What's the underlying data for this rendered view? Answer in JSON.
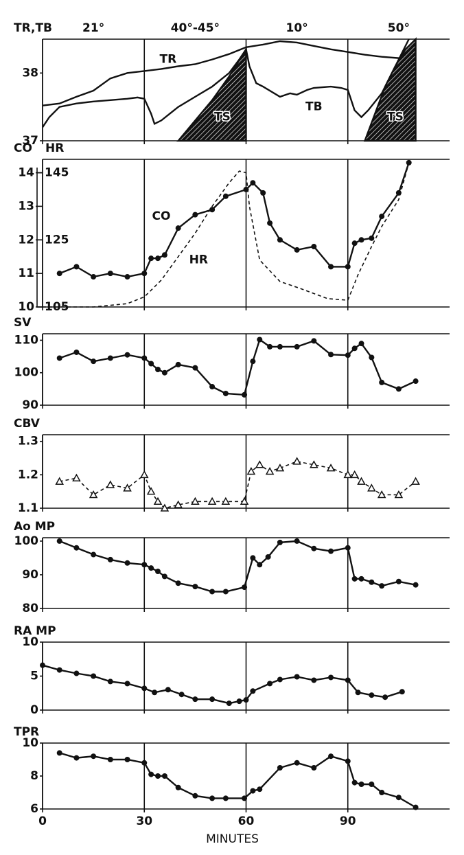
{
  "chart_data": [
    {
      "type": "line",
      "title": "TR,TB",
      "xlim": [
        0,
        120
      ],
      "xticks": [
        0,
        30,
        60,
        90
      ],
      "ylim": [
        37,
        38.5
      ],
      "yticks": [
        37,
        38
      ],
      "phases": [
        {
          "label": "21°",
          "start": 0,
          "end": 30
        },
        {
          "label": "40°-45°",
          "start": 30,
          "end": 60
        },
        {
          "label": "10°",
          "start": 60,
          "end": 90
        },
        {
          "label": "50°",
          "start": 90,
          "end": 120
        }
      ],
      "series": [
        {
          "name": "TR",
          "color": "#111",
          "x": [
            0,
            5,
            10,
            15,
            20,
            25,
            30,
            35,
            40,
            45,
            50,
            55,
            58,
            60,
            65,
            70,
            75,
            80,
            85,
            90,
            95,
            100,
            105,
            110
          ],
          "values": [
            37.52,
            37.55,
            37.65,
            37.74,
            37.92,
            38.0,
            38.03,
            38.06,
            38.1,
            38.13,
            38.2,
            38.28,
            38.34,
            38.38,
            38.42,
            38.47,
            38.45,
            38.4,
            38.35,
            38.31,
            38.27,
            38.24,
            38.22,
            38.3
          ]
        },
        {
          "name": "TB",
          "color": "#111",
          "x": [
            0,
            2,
            5,
            10,
            15,
            20,
            25,
            28,
            30,
            32,
            33,
            35,
            40,
            45,
            50,
            55,
            58,
            60,
            61,
            63,
            65,
            70,
            73,
            75,
            78,
            80,
            85,
            88,
            90,
            92,
            94,
            96,
            100,
            104,
            108
          ],
          "values": [
            37.2,
            37.35,
            37.5,
            37.55,
            37.58,
            37.6,
            37.62,
            37.64,
            37.62,
            37.4,
            37.25,
            37.3,
            37.5,
            37.65,
            37.8,
            38.0,
            38.2,
            38.35,
            38.1,
            37.85,
            37.8,
            37.65,
            37.7,
            37.68,
            37.75,
            37.78,
            37.8,
            37.78,
            37.75,
            37.45,
            37.35,
            37.45,
            37.7,
            38.1,
            38.5
          ]
        },
        {
          "name": "TS",
          "color": "#111",
          "area": true,
          "x": [
            40,
            45,
            50,
            55,
            60,
            75,
            95,
            98,
            101,
            104,
            107,
            110
          ],
          "values": [
            37,
            37.3,
            37.6,
            37.95,
            38.35,
            null,
            37,
            37.4,
            37.8,
            38.1,
            38.35,
            38.5
          ]
        }
      ],
      "annotations": [
        {
          "text": "TR",
          "x": 37,
          "y": 38.2
        },
        {
          "text": "TB",
          "x": 80,
          "y": 37.5
        },
        {
          "text": "TS",
          "x": 53,
          "y": 37.35
        },
        {
          "text": "TS",
          "x": 104,
          "y": 37.35
        }
      ]
    },
    {
      "type": "line",
      "title": "CO",
      "y2label": "HR",
      "xlim": [
        0,
        120
      ],
      "xticks": [
        0,
        30,
        60,
        90
      ],
      "ylim": [
        10,
        14.4
      ],
      "yticks": [
        10,
        11,
        12,
        13,
        14
      ],
      "y2lim": [
        105,
        149
      ],
      "y2ticks": [
        105,
        125,
        145
      ],
      "series": [
        {
          "name": "CO",
          "color": "#111",
          "marker": "circle",
          "x": [
            5,
            10,
            15,
            20,
            25,
            30,
            32,
            34,
            36,
            40,
            45,
            50,
            54,
            60,
            62,
            65,
            67,
            70,
            75,
            80,
            85,
            90,
            92,
            94,
            97,
            100,
            105,
            108
          ],
          "values": [
            11.0,
            11.2,
            10.9,
            11.0,
            10.9,
            11.0,
            11.45,
            11.45,
            11.55,
            12.35,
            12.75,
            12.9,
            13.3,
            13.5,
            13.7,
            13.4,
            12.5,
            12.0,
            11.7,
            11.8,
            11.2,
            11.2,
            11.9,
            12.0,
            12.05,
            12.7,
            13.4,
            14.3
          ]
        },
        {
          "name": "HR",
          "color": "#111",
          "dash": true,
          "axis": "y2",
          "x": [
            0,
            5,
            10,
            15,
            20,
            25,
            30,
            35,
            40,
            45,
            50,
            55,
            58,
            60,
            61,
            64,
            70,
            76,
            84,
            90,
            93,
            97,
            100,
            105,
            108
          ],
          "values": [
            105,
            105,
            105,
            105,
            105.5,
            106,
            108,
            113,
            120,
            127,
            135,
            142,
            145.5,
            145,
            135,
            119,
            112.6,
            110.5,
            107.5,
            107,
            114.6,
            123,
            129,
            137,
            148
          ]
        }
      ],
      "annotations": [
        {
          "text": "CO",
          "x": 35,
          "y": 12.7
        },
        {
          "text": "HR",
          "x": 46,
          "y": 11.4
        }
      ]
    },
    {
      "type": "line",
      "title": "SV",
      "xlim": [
        0,
        120
      ],
      "xticks": [
        0,
        30,
        60,
        90
      ],
      "ylim": [
        90,
        112
      ],
      "yticks": [
        90,
        100,
        110
      ],
      "series": [
        {
          "name": "SV",
          "color": "#111",
          "marker": "circle",
          "x": [
            5,
            10,
            15,
            20,
            25,
            30,
            32,
            34,
            36,
            40,
            45,
            50,
            54,
            59.5,
            62,
            64,
            67,
            70,
            75,
            80,
            85,
            90,
            92,
            94,
            97,
            100,
            105,
            110
          ],
          "values": [
            104.5,
            106.3,
            103.5,
            104.5,
            105.5,
            104.5,
            102.8,
            101,
            100,
            102.5,
            101.5,
            95.7,
            93.6,
            93.2,
            103.5,
            110.2,
            108,
            108,
            108,
            109.8,
            105.6,
            105.4,
            107.5,
            109,
            104.7,
            97,
            95,
            97.4
          ]
        }
      ]
    },
    {
      "type": "line",
      "title": "CBV",
      "xlim": [
        0,
        120
      ],
      "xticks": [
        0,
        30,
        60,
        90
      ],
      "ylim": [
        1.1,
        1.32
      ],
      "yticks": [
        1.1,
        1.2,
        1.3
      ],
      "series": [
        {
          "name": "CBV",
          "color": "#111",
          "marker": "triangle",
          "dash": true,
          "x": [
            5,
            10,
            15,
            20,
            25,
            30,
            32,
            34,
            36,
            40,
            45,
            50,
            54,
            59.5,
            61.5,
            64,
            67,
            70,
            75,
            80,
            85,
            90,
            92,
            94,
            97,
            100,
            105,
            110
          ],
          "values": [
            1.18,
            1.19,
            1.14,
            1.17,
            1.16,
            1.2,
            1.15,
            1.12,
            1.1,
            1.11,
            1.12,
            1.12,
            1.12,
            1.12,
            1.21,
            1.23,
            1.21,
            1.22,
            1.24,
            1.23,
            1.22,
            1.2,
            1.2,
            1.18,
            1.16,
            1.14,
            1.14,
            1.18
          ]
        }
      ]
    },
    {
      "type": "line",
      "title": "Ao MP",
      "xlim": [
        0,
        120
      ],
      "xticks": [
        0,
        30,
        60,
        90
      ],
      "ylim": [
        80,
        101
      ],
      "yticks": [
        80,
        90,
        100
      ],
      "series": [
        {
          "name": "Ao MP",
          "color": "#111",
          "marker": "circle",
          "x": [
            5,
            10,
            15,
            20,
            25,
            30,
            32,
            34,
            36,
            40,
            45,
            50,
            54,
            59.5,
            62,
            64,
            66.5,
            70,
            75,
            80,
            85,
            90,
            92,
            94,
            97,
            100,
            105,
            110
          ],
          "values": [
            100,
            98,
            96,
            94.5,
            93.5,
            93,
            92,
            91,
            89.5,
            87.5,
            86.5,
            85,
            85,
            86.3,
            95,
            93,
            95.3,
            99.6,
            100,
            97.8,
            97,
            98,
            88.8,
            88.8,
            87.8,
            86.7,
            88,
            87
          ]
        }
      ]
    },
    {
      "type": "line",
      "title": "RA MP",
      "xlim": [
        0,
        120
      ],
      "xticks": [
        0,
        30,
        60,
        90
      ],
      "ylim": [
        0,
        10
      ],
      "yticks": [
        0,
        5,
        10
      ],
      "series": [
        {
          "name": "RA MP",
          "color": "#111",
          "marker": "circle",
          "x": [
            0,
            5,
            10,
            15,
            20,
            25,
            30,
            33,
            37,
            41,
            45,
            50,
            55,
            58,
            60,
            62,
            67,
            70,
            75,
            80,
            85,
            90,
            93,
            97,
            101,
            106
          ],
          "values": [
            6.6,
            5.9,
            5.4,
            5.0,
            4.2,
            3.9,
            3.2,
            2.6,
            3.0,
            2.3,
            1.6,
            1.6,
            1.0,
            1.3,
            1.5,
            2.8,
            3.9,
            4.5,
            4.9,
            4.4,
            4.8,
            4.4,
            2.6,
            2.2,
            1.9,
            2.7
          ]
        }
      ]
    },
    {
      "type": "line",
      "title": "TPR",
      "xlabel": "MINUTES",
      "xtick_labels": true,
      "xlim": [
        0,
        120
      ],
      "xticks": [
        0,
        30,
        60,
        90
      ],
      "ylim": [
        6,
        10
      ],
      "yticks": [
        6,
        8,
        10
      ],
      "series": [
        {
          "name": "TPR",
          "color": "#111",
          "marker": "circle",
          "x": [
            5,
            10,
            15,
            20,
            25,
            30,
            32,
            34,
            36,
            40,
            45,
            50,
            54,
            59.5,
            62,
            64,
            70,
            75,
            80,
            85,
            90,
            92,
            94,
            97,
            100,
            105,
            110
          ],
          "values": [
            9.4,
            9.1,
            9.2,
            9.0,
            9.0,
            8.8,
            8.1,
            8.0,
            8.0,
            7.3,
            6.8,
            6.65,
            6.65,
            6.65,
            7.1,
            7.2,
            8.5,
            8.8,
            8.5,
            9.2,
            8.9,
            7.6,
            7.5,
            7.5,
            7.0,
            6.7,
            6.1
          ]
        }
      ]
    }
  ]
}
